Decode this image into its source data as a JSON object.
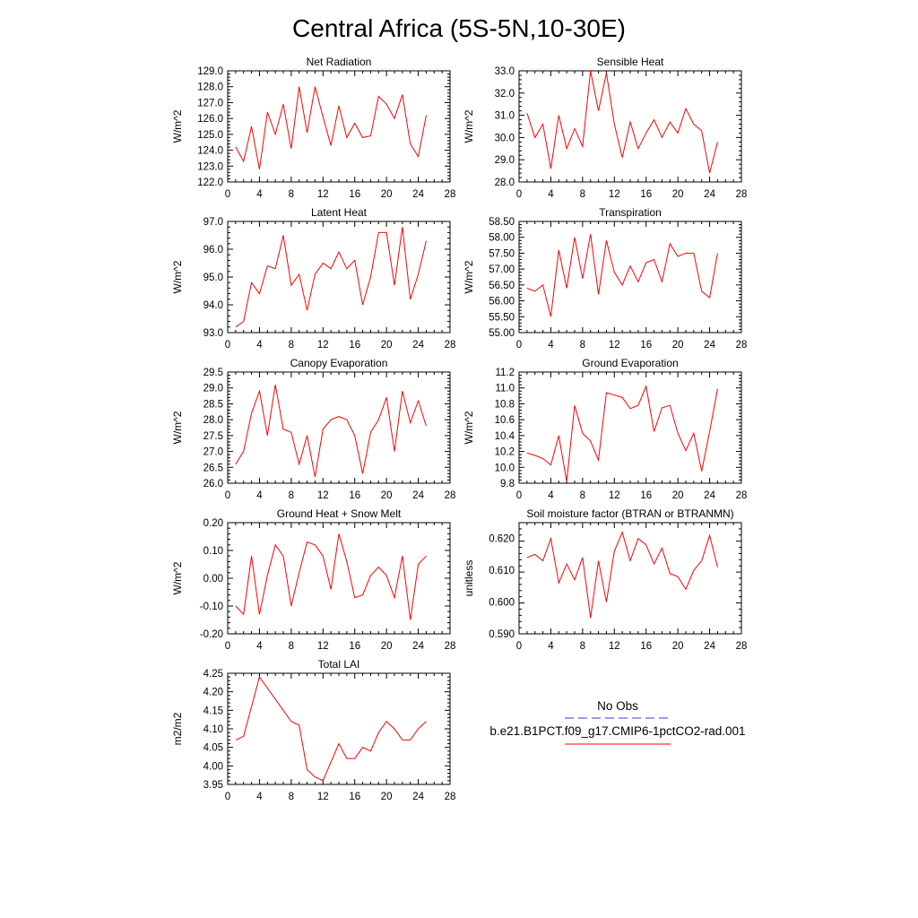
{
  "title": "Central Africa (5S-5N,10-30E)",
  "legend": {
    "entries": [
      {
        "label": "No Obs",
        "color": "#3b3bd6",
        "style": "dashed"
      },
      {
        "label": "b.e21.B1PCT.f09_g17.CMIP6-1pctCO2-rad.001",
        "color": "#ff0000",
        "style": "solid"
      }
    ]
  },
  "chart_data": [
    {
      "type": "line",
      "title": "Net Radiation",
      "ylabel": "W/m^2",
      "xlim": [
        0,
        28
      ],
      "ylim": [
        122,
        129
      ],
      "xticks": [
        0,
        4,
        8,
        12,
        16,
        20,
        24,
        28
      ],
      "xtick_labels": [
        "0",
        "4",
        "8",
        "12",
        "16",
        "20",
        "24",
        "28"
      ],
      "yticks": [
        122,
        123,
        124,
        125,
        126,
        127,
        128,
        129
      ],
      "ytick_labels": [
        "122.0",
        "123.0",
        "124.0",
        "125.0",
        "126.0",
        "127.0",
        "128.0",
        "129.0"
      ],
      "series": [
        {
          "color": "#ff0000",
          "x": [
            1,
            2,
            3,
            4,
            5,
            6,
            7,
            8,
            9,
            10,
            11,
            12,
            13,
            14,
            15,
            16,
            17,
            18,
            19,
            20,
            21,
            22,
            23,
            24,
            25
          ],
          "values": [
            124.2,
            123.3,
            125.5,
            122.8,
            126.4,
            125.0,
            126.9,
            124.1,
            128.0,
            125.1,
            128.0,
            126.1,
            124.3,
            126.8,
            124.8,
            125.7,
            124.8,
            124.9,
            127.4,
            126.9,
            126.0,
            127.5,
            124.4,
            123.6,
            126.2
          ]
        }
      ]
    },
    {
      "type": "line",
      "title": "Sensible Heat",
      "ylabel": "W/m^2",
      "xlim": [
        0,
        28
      ],
      "ylim": [
        28,
        33
      ],
      "xticks": [
        0,
        4,
        8,
        12,
        16,
        20,
        24,
        28
      ],
      "xtick_labels": [
        "0",
        "4",
        "8",
        "12",
        "16",
        "20",
        "24",
        "28"
      ],
      "yticks": [
        28,
        29,
        30,
        31,
        32,
        33
      ],
      "ytick_labels": [
        "28.0",
        "29.0",
        "30.0",
        "31.0",
        "32.0",
        "33.0"
      ],
      "series": [
        {
          "color": "#ff0000",
          "x": [
            1,
            2,
            3,
            4,
            5,
            6,
            7,
            8,
            9,
            10,
            11,
            12,
            13,
            14,
            15,
            16,
            17,
            18,
            19,
            20,
            21,
            22,
            23,
            24,
            25
          ],
          "values": [
            31.1,
            30.0,
            30.6,
            28.6,
            31.0,
            29.5,
            30.4,
            29.6,
            33.0,
            31.2,
            32.9,
            30.6,
            29.1,
            30.7,
            29.5,
            30.2,
            30.8,
            30.0,
            30.7,
            30.2,
            31.3,
            30.6,
            30.3,
            28.4,
            29.8
          ]
        }
      ]
    },
    {
      "type": "line",
      "title": "Latent Heat",
      "ylabel": "W/m^2",
      "xlim": [
        0,
        28
      ],
      "ylim": [
        93,
        97
      ],
      "xticks": [
        0,
        4,
        8,
        12,
        16,
        20,
        24,
        28
      ],
      "xtick_labels": [
        "0",
        "4",
        "8",
        "12",
        "16",
        "20",
        "24",
        "28"
      ],
      "yticks": [
        93,
        94,
        95,
        96,
        97
      ],
      "ytick_labels": [
        "93.0",
        "94.0",
        "95.0",
        "96.0",
        "97.0"
      ],
      "series": [
        {
          "color": "#ff0000",
          "x": [
            1,
            2,
            3,
            4,
            5,
            6,
            7,
            8,
            9,
            10,
            11,
            12,
            13,
            14,
            15,
            16,
            17,
            18,
            19,
            20,
            21,
            22,
            23,
            24,
            25
          ],
          "values": [
            93.2,
            93.4,
            94.8,
            94.4,
            95.4,
            95.3,
            96.5,
            94.7,
            95.1,
            93.8,
            95.1,
            95.5,
            95.3,
            95.9,
            95.3,
            95.6,
            94.0,
            95.0,
            96.6,
            96.6,
            94.7,
            96.8,
            94.2,
            95.1,
            96.3
          ]
        }
      ]
    },
    {
      "type": "line",
      "title": "Transpiration",
      "ylabel": "W/m^2",
      "xlim": [
        0,
        28
      ],
      "ylim": [
        55,
        58.5
      ],
      "xticks": [
        0,
        4,
        8,
        12,
        16,
        20,
        24,
        28
      ],
      "xtick_labels": [
        "0",
        "4",
        "8",
        "12",
        "16",
        "20",
        "24",
        "28"
      ],
      "yticks": [
        55,
        55.5,
        56,
        56.5,
        57,
        57.5,
        58,
        58.5
      ],
      "ytick_labels": [
        "55.00",
        "55.50",
        "56.00",
        "56.50",
        "57.00",
        "57.50",
        "58.00",
        "58.50"
      ],
      "series": [
        {
          "color": "#ff0000",
          "x": [
            1,
            2,
            3,
            4,
            5,
            6,
            7,
            8,
            9,
            10,
            11,
            12,
            13,
            14,
            15,
            16,
            17,
            18,
            19,
            20,
            21,
            22,
            23,
            24,
            25
          ],
          "values": [
            56.4,
            56.3,
            56.5,
            55.5,
            57.6,
            56.4,
            58.0,
            56.7,
            58.1,
            56.2,
            57.9,
            56.9,
            56.5,
            57.1,
            56.6,
            57.2,
            57.3,
            56.6,
            57.8,
            57.4,
            57.5,
            57.5,
            56.3,
            56.1,
            57.5
          ]
        }
      ]
    },
    {
      "type": "line",
      "title": "Canopy Evaporation",
      "ylabel": "W/m^2",
      "xlim": [
        0,
        28
      ],
      "ylim": [
        26,
        29.5
      ],
      "xticks": [
        0,
        4,
        8,
        12,
        16,
        20,
        24,
        28
      ],
      "xtick_labels": [
        "0",
        "4",
        "8",
        "12",
        "16",
        "20",
        "24",
        "28"
      ],
      "yticks": [
        26,
        26.5,
        27,
        27.5,
        28,
        28.5,
        29,
        29.5
      ],
      "ytick_labels": [
        "26.0",
        "26.5",
        "27.0",
        "27.5",
        "28.0",
        "28.5",
        "29.0",
        "29.5"
      ],
      "series": [
        {
          "color": "#ff0000",
          "x": [
            1,
            2,
            3,
            4,
            5,
            6,
            7,
            8,
            9,
            10,
            11,
            12,
            13,
            14,
            15,
            16,
            17,
            18,
            19,
            20,
            21,
            22,
            23,
            24,
            25
          ],
          "values": [
            26.6,
            27.0,
            28.2,
            28.9,
            27.5,
            29.1,
            27.7,
            27.6,
            26.6,
            27.5,
            26.2,
            27.7,
            28.0,
            28.1,
            28.0,
            27.5,
            26.3,
            27.6,
            28.0,
            28.7,
            27.0,
            28.9,
            27.9,
            28.6,
            27.8
          ]
        }
      ]
    },
    {
      "type": "line",
      "title": "Ground Evaporation",
      "ylabel": "W/m^2",
      "xlim": [
        0,
        28
      ],
      "ylim": [
        9.8,
        11.2
      ],
      "xticks": [
        0,
        4,
        8,
        12,
        16,
        20,
        24,
        28
      ],
      "xtick_labels": [
        "0",
        "4",
        "8",
        "12",
        "16",
        "20",
        "24",
        "28"
      ],
      "yticks": [
        9.8,
        10.0,
        10.2,
        10.4,
        10.6,
        10.8,
        11.0,
        11.2
      ],
      "ytick_labels": [
        "9.8",
        "10.0",
        "10.2",
        "10.4",
        "10.6",
        "10.8",
        "11.0",
        "11.2"
      ],
      "series": [
        {
          "color": "#ff0000",
          "x": [
            1,
            2,
            3,
            4,
            5,
            6,
            7,
            8,
            9,
            10,
            11,
            12,
            13,
            14,
            15,
            16,
            17,
            18,
            19,
            20,
            21,
            22,
            23,
            24,
            25
          ],
          "values": [
            10.18,
            10.15,
            10.11,
            10.03,
            10.4,
            9.82,
            10.78,
            10.43,
            10.33,
            10.09,
            10.94,
            10.91,
            10.88,
            10.74,
            10.78,
            11.02,
            10.45,
            10.75,
            10.78,
            10.43,
            10.21,
            10.43,
            9.95,
            10.45,
            10.99
          ]
        }
      ]
    },
    {
      "type": "line",
      "title": "Ground Heat + Snow Melt",
      "ylabel": "W/m^2",
      "xlim": [
        0,
        28
      ],
      "ylim": [
        -0.2,
        0.2
      ],
      "xticks": [
        0,
        4,
        8,
        12,
        16,
        20,
        24,
        28
      ],
      "xtick_labels": [
        "0",
        "4",
        "8",
        "12",
        "16",
        "20",
        "24",
        "28"
      ],
      "yticks": [
        -0.2,
        -0.1,
        0,
        0.1,
        0.2
      ],
      "ytick_labels": [
        "-0.20",
        "-0.10",
        "0.00",
        "0.10",
        "0.20"
      ],
      "series": [
        {
          "color": "#ff0000",
          "x": [
            1,
            2,
            3,
            4,
            5,
            6,
            7,
            8,
            9,
            10,
            11,
            12,
            13,
            14,
            15,
            16,
            17,
            18,
            19,
            20,
            21,
            22,
            23,
            24,
            25
          ],
          "values": [
            -0.1,
            -0.13,
            0.08,
            -0.13,
            0.01,
            0.12,
            0.08,
            -0.1,
            0.02,
            0.13,
            0.12,
            0.08,
            -0.04,
            0.16,
            0.06,
            -0.07,
            -0.06,
            0.01,
            0.04,
            0.01,
            -0.07,
            0.08,
            -0.15,
            0.05,
            0.08
          ]
        }
      ]
    },
    {
      "type": "line",
      "title": "Soil moisture factor (BTRAN or BTRANMN)",
      "ylabel": "unitless",
      "xlim": [
        0,
        28
      ],
      "ylim": [
        0.59,
        0.625
      ],
      "xticks": [
        0,
        4,
        8,
        12,
        16,
        20,
        24,
        28
      ],
      "xtick_labels": [
        "0",
        "4",
        "8",
        "12",
        "16",
        "20",
        "24",
        "28"
      ],
      "yticks": [
        0.59,
        0.6,
        0.61,
        0.62
      ],
      "ytick_labels": [
        "0.590",
        "0.600",
        "0.610",
        "0.620"
      ],
      "series": [
        {
          "color": "#ff0000",
          "x": [
            1,
            2,
            3,
            4,
            5,
            6,
            7,
            8,
            9,
            10,
            11,
            12,
            13,
            14,
            15,
            16,
            17,
            18,
            19,
            20,
            21,
            22,
            23,
            24,
            25
          ],
          "values": [
            0.614,
            0.615,
            0.613,
            0.62,
            0.606,
            0.612,
            0.607,
            0.614,
            0.595,
            0.613,
            0.6,
            0.616,
            0.622,
            0.613,
            0.62,
            0.618,
            0.612,
            0.617,
            0.609,
            0.608,
            0.604,
            0.61,
            0.613,
            0.621,
            0.611
          ]
        }
      ]
    },
    {
      "type": "line",
      "title": "Total LAI",
      "ylabel": "m2/m2",
      "xlim": [
        0,
        28
      ],
      "ylim": [
        3.95,
        4.25
      ],
      "xticks": [
        0,
        4,
        8,
        12,
        16,
        20,
        24,
        28
      ],
      "xtick_labels": [
        "0",
        "4",
        "8",
        "12",
        "16",
        "20",
        "24",
        "28"
      ],
      "yticks": [
        3.95,
        4.0,
        4.05,
        4.1,
        4.15,
        4.2,
        4.25
      ],
      "ytick_labels": [
        "3.95",
        "4.00",
        "4.05",
        "4.10",
        "4.15",
        "4.20",
        "4.25"
      ],
      "series": [
        {
          "color": "#ff0000",
          "x": [
            1,
            2,
            3,
            4,
            5,
            6,
            7,
            8,
            9,
            10,
            11,
            12,
            13,
            14,
            15,
            16,
            17,
            18,
            19,
            20,
            21,
            22,
            23,
            24,
            25
          ],
          "values": [
            4.07,
            4.08,
            4.16,
            4.24,
            4.21,
            4.18,
            4.15,
            4.12,
            4.11,
            3.99,
            3.97,
            3.96,
            4.01,
            4.06,
            4.02,
            4.02,
            4.05,
            4.04,
            4.09,
            4.12,
            4.1,
            4.07,
            4.07,
            4.1,
            4.12
          ]
        }
      ]
    }
  ]
}
